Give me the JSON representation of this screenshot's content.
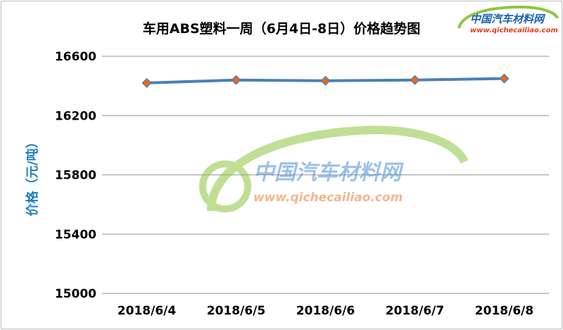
{
  "chart_data": {
    "type": "line",
    "title": "车用ABS塑料一周（6月4日-8日）价格趋势图",
    "xlabel": "",
    "ylabel": "价格（元/吨）",
    "categories": [
      "2018/6/4",
      "2018/6/5",
      "2018/6/6",
      "2018/6/7",
      "2018/6/8"
    ],
    "values": [
      16420,
      16440,
      16435,
      16440,
      16450
    ],
    "ylim": [
      15000,
      16600
    ],
    "yticks": [
      "15000",
      "15400",
      "15800",
      "16200",
      "16600"
    ],
    "grid": true,
    "legend": "none",
    "line_color": "#4a7ebb",
    "marker_color": "#ff6600"
  },
  "watermark": {
    "name": "中国汽车材料网",
    "url": "www.qichecailiao.com"
  }
}
